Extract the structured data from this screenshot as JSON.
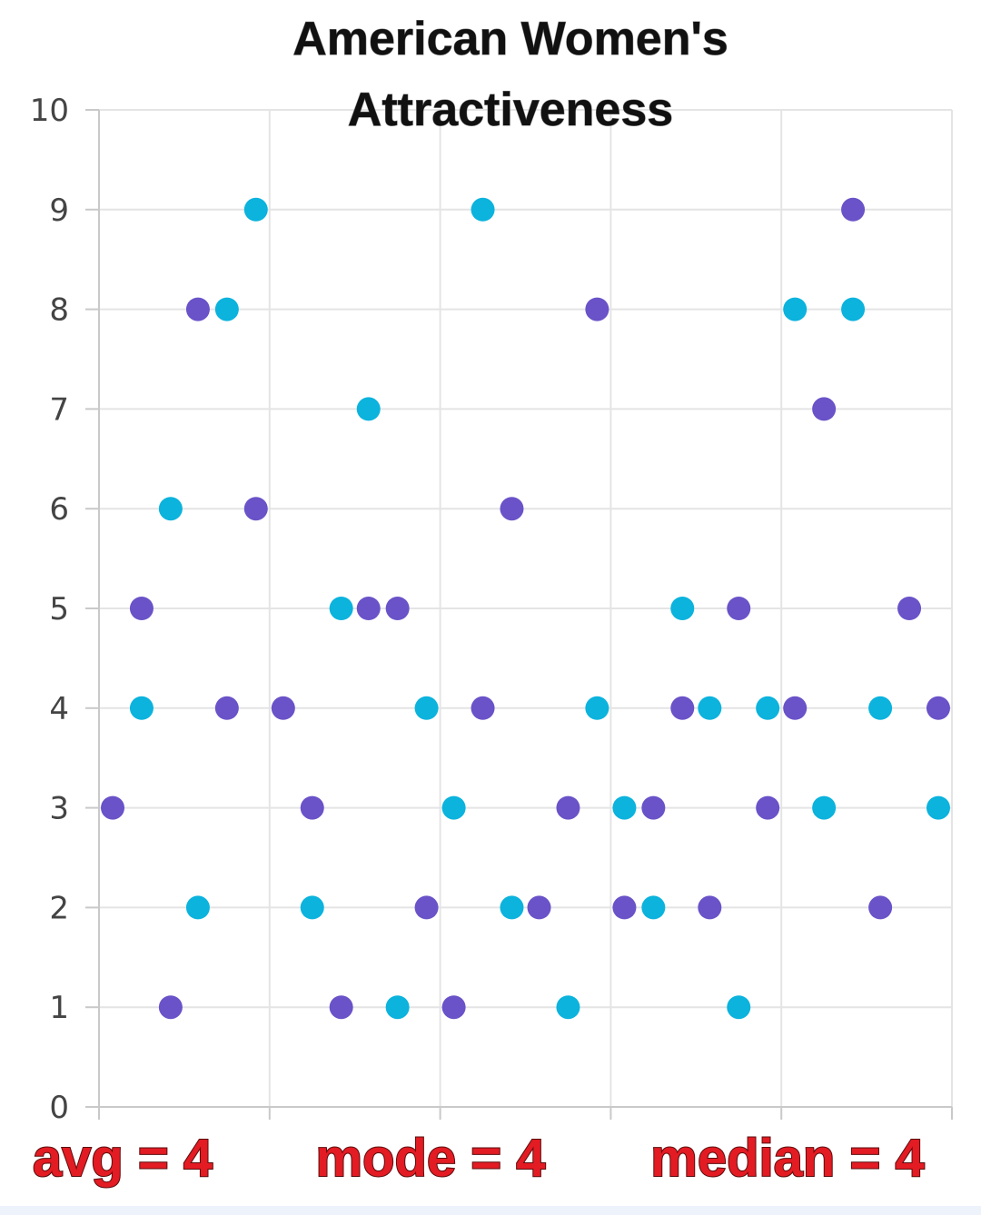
{
  "chart_data": {
    "type": "scatter",
    "title_lines": [
      "American Women's",
      "Attractiveness"
    ],
    "xlim": [
      0,
      5
    ],
    "ylim": [
      0,
      10
    ],
    "y_ticks": [
      "0",
      "1",
      "2",
      "3",
      "4",
      "5",
      "6",
      "7",
      "8",
      "9",
      "10"
    ],
    "grid": true,
    "colors": {
      "series_a": "#6a52c8",
      "series_b": "#0bb3dd"
    },
    "series": [
      {
        "color_key": "series_a",
        "points": [
          {
            "x": 0.08,
            "y": 3
          },
          {
            "x": 0.25,
            "y": 5
          },
          {
            "x": 0.42,
            "y": 1
          },
          {
            "x": 0.58,
            "y": 8
          },
          {
            "x": 0.75,
            "y": 4
          },
          {
            "x": 0.92,
            "y": 6
          },
          {
            "x": 1.08,
            "y": 4
          },
          {
            "x": 1.25,
            "y": 3
          },
          {
            "x": 1.42,
            "y": 1
          },
          {
            "x": 1.58,
            "y": 5
          },
          {
            "x": 1.75,
            "y": 5
          },
          {
            "x": 1.92,
            "y": 2
          },
          {
            "x": 2.08,
            "y": 1
          },
          {
            "x": 2.25,
            "y": 4
          },
          {
            "x": 2.42,
            "y": 6
          },
          {
            "x": 2.58,
            "y": 2
          },
          {
            "x": 2.75,
            "y": 3
          },
          {
            "x": 2.92,
            "y": 8
          },
          {
            "x": 3.08,
            "y": 2
          },
          {
            "x": 3.25,
            "y": 3
          },
          {
            "x": 3.42,
            "y": 4
          },
          {
            "x": 3.58,
            "y": 2
          },
          {
            "x": 3.75,
            "y": 5
          },
          {
            "x": 3.92,
            "y": 3
          },
          {
            "x": 4.08,
            "y": 4
          },
          {
            "x": 4.25,
            "y": 7
          },
          {
            "x": 4.42,
            "y": 9
          },
          {
            "x": 4.58,
            "y": 2
          },
          {
            "x": 4.75,
            "y": 5
          },
          {
            "x": 4.92,
            "y": 4
          }
        ]
      },
      {
        "color_key": "series_b",
        "points": [
          {
            "x": 0.25,
            "y": 4
          },
          {
            "x": 0.42,
            "y": 6
          },
          {
            "x": 0.58,
            "y": 2
          },
          {
            "x": 0.75,
            "y": 8
          },
          {
            "x": 0.92,
            "y": 9
          },
          {
            "x": 1.25,
            "y": 2
          },
          {
            "x": 1.42,
            "y": 5
          },
          {
            "x": 1.58,
            "y": 7
          },
          {
            "x": 1.75,
            "y": 1
          },
          {
            "x": 1.92,
            "y": 4
          },
          {
            "x": 2.08,
            "y": 3
          },
          {
            "x": 2.25,
            "y": 9
          },
          {
            "x": 2.42,
            "y": 2
          },
          {
            "x": 2.75,
            "y": 1
          },
          {
            "x": 2.92,
            "y": 4
          },
          {
            "x": 3.08,
            "y": 3
          },
          {
            "x": 3.25,
            "y": 2
          },
          {
            "x": 3.42,
            "y": 5
          },
          {
            "x": 3.58,
            "y": 4
          },
          {
            "x": 3.75,
            "y": 1
          },
          {
            "x": 3.92,
            "y": 4
          },
          {
            "x": 4.08,
            "y": 8
          },
          {
            "x": 4.25,
            "y": 3
          },
          {
            "x": 4.42,
            "y": 8
          },
          {
            "x": 4.58,
            "y": 4
          },
          {
            "x": 4.92,
            "y": 3
          }
        ]
      }
    ],
    "annotations": [
      "avg = 4",
      "mode = 4",
      "median = 4"
    ]
  }
}
